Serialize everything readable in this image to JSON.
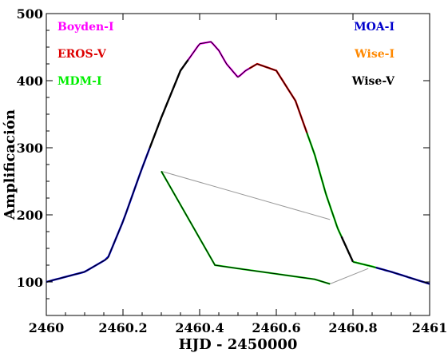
{
  "chart_data": {
    "type": "line",
    "xlabel": "HJD - 2450000",
    "ylabel": "Amplificación",
    "xlim": [
      2460,
      2461
    ],
    "ylim": [
      50,
      500
    ],
    "xticks": [
      "2460",
      "2460.2",
      "2460.4",
      "2460.6",
      "2460.8",
      "2461"
    ],
    "yticks": [
      "100",
      "200",
      "300",
      "400",
      "500"
    ],
    "xtick_values": [
      2460,
      2460.2,
      2460.4,
      2460.6,
      2460.8,
      2461
    ],
    "ytick_values": [
      100,
      200,
      300,
      400,
      500
    ],
    "legend": [
      {
        "label": "Boyden-I",
        "color": "#ff00ff",
        "position": "top-left"
      },
      {
        "label": "EROS-V",
        "color": "#dd0000",
        "position": "top-left"
      },
      {
        "label": "MDM-I",
        "color": "#00ee00",
        "position": "top-left"
      },
      {
        "label": "MOA-I",
        "color": "#0000cc",
        "position": "top-right"
      },
      {
        "label": "Wise-I",
        "color": "#ff8800",
        "position": "top-right"
      },
      {
        "label": "Wise-V",
        "color": "#000000",
        "position": "top-right"
      }
    ],
    "main_curve": {
      "x": [
        2460.0,
        2460.1,
        2460.16,
        2460.2,
        2460.25,
        2460.3,
        2460.35,
        2460.4,
        2460.43,
        2460.45,
        2460.47,
        2460.5,
        2460.52,
        2460.55,
        2460.6,
        2460.65,
        2460.7,
        2460.73,
        2460.76,
        2460.8,
        2460.85,
        2460.9,
        2461.0
      ],
      "y": [
        100,
        115,
        135,
        190,
        270,
        345,
        415,
        455,
        458,
        445,
        425,
        405,
        415,
        425,
        415,
        370,
        290,
        230,
        180,
        130,
        123,
        115,
        97
      ]
    },
    "inset_curve": {
      "x": [
        2460.3,
        2460.35,
        2460.4,
        2460.44,
        2460.5,
        2460.6,
        2460.7,
        2460.74
      ],
      "y": [
        265,
        215,
        165,
        125,
        120,
        112,
        104,
        97
      ]
    },
    "connector_lines": [
      {
        "x": [
          2460.3,
          2460.74
        ],
        "y": [
          265,
          193
        ]
      },
      {
        "x": [
          2460.74,
          2460.84
        ],
        "y": [
          97,
          120
        ]
      }
    ],
    "segments": [
      {
        "series": "MOA-I",
        "x_range": [
          2460.0,
          2460.27
        ]
      },
      {
        "series": "Wise-V",
        "x_range": [
          2460.27,
          2460.37
        ]
      },
      {
        "series": "Boyden-I",
        "x_range": [
          2460.37,
          2460.53
        ]
      },
      {
        "series": "EROS-V",
        "x_range": [
          2460.53,
          2460.68
        ]
      },
      {
        "series": "MDM-I",
        "x_range": [
          2460.68,
          2460.77
        ]
      },
      {
        "series": "Wise-V",
        "x_range": [
          2460.77,
          2460.8
        ]
      },
      {
        "series": "MDM-I",
        "x_range": [
          2460.8,
          2460.86
        ]
      },
      {
        "series": "MOA-I",
        "x_range": [
          2460.86,
          2461.0
        ]
      }
    ],
    "grid": false
  }
}
